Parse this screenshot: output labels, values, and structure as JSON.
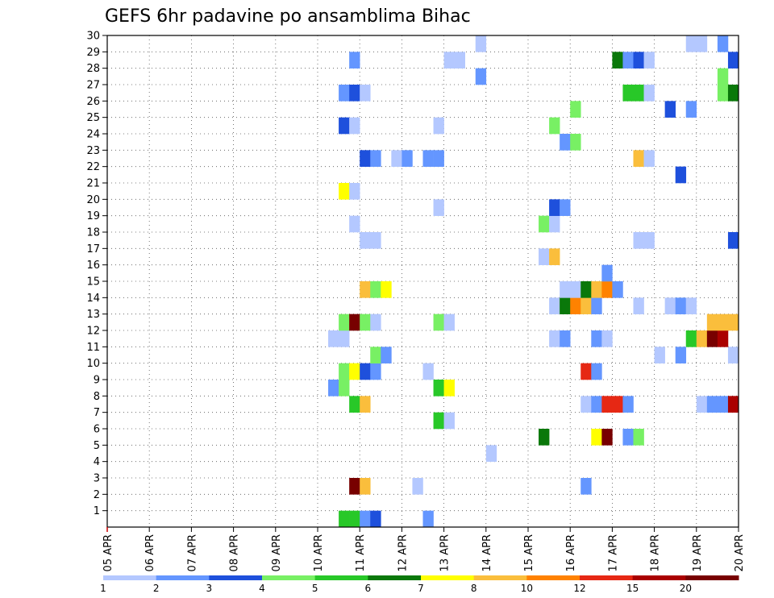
{
  "chart_data": {
    "type": "heatmap",
    "title": "GEFS 6hr padavine po ansamblima Bihac",
    "xlabel": "",
    "ylabel": "",
    "x_tick_labels": [
      "05 APR",
      "06 APR",
      "07 APR",
      "08 APR",
      "09 APR",
      "10 APR",
      "11 APR",
      "12 APR",
      "13 APR",
      "14 APR",
      "15 APR",
      "16 APR",
      "17 APR",
      "18 APR",
      "19 APR",
      "20 APR"
    ],
    "y_tick_labels": [
      "1",
      "2",
      "3",
      "4",
      "5",
      "6",
      "7",
      "8",
      "9",
      "10",
      "11",
      "12",
      "13",
      "14",
      "15",
      "16",
      "17",
      "18",
      "19",
      "20",
      "21",
      "22",
      "23",
      "24",
      "25",
      "26",
      "27",
      "28",
      "29",
      "30"
    ],
    "x_unit": "6-hour step since 05 APR 00Z",
    "xlim": [
      0,
      60
    ],
    "ylim": [
      0,
      30
    ],
    "grid": true,
    "colorbar": {
      "levels": [
        "1",
        "2",
        "3",
        "4",
        "5",
        "6",
        "7",
        "8",
        "10",
        "12",
        "15",
        "20"
      ],
      "colors": [
        "#b4c8ff",
        "#6496ff",
        "#1e50dc",
        "#78f064",
        "#28c828",
        "#0a780a",
        "#ffff00",
        "#fabe3c",
        "#ff8200",
        "#e62814",
        "#aa0000",
        "#780000"
      ]
    },
    "cells": [
      {
        "s": 22,
        "y": 0,
        "c": 5
      },
      {
        "s": 23,
        "y": 0,
        "c": 5
      },
      {
        "s": 24,
        "y": 0,
        "c": 2
      },
      {
        "s": 25,
        "y": 0,
        "c": 3
      },
      {
        "s": 30,
        "y": 0,
        "c": 2
      },
      {
        "s": 23,
        "y": 2,
        "c": 12
      },
      {
        "s": 24,
        "y": 2,
        "c": 8
      },
      {
        "s": 29,
        "y": 2,
        "c": 1
      },
      {
        "s": 45,
        "y": 2,
        "c": 2
      },
      {
        "s": 36,
        "y": 4,
        "c": 1
      },
      {
        "s": 41,
        "y": 5,
        "c": 6
      },
      {
        "s": 46,
        "y": 5,
        "c": 7
      },
      {
        "s": 47,
        "y": 5,
        "c": 12
      },
      {
        "s": 49,
        "y": 5,
        "c": 2
      },
      {
        "s": 50,
        "y": 5,
        "c": 4
      },
      {
        "s": 31,
        "y": 6,
        "c": 5
      },
      {
        "s": 32,
        "y": 6,
        "c": 1
      },
      {
        "s": 23,
        "y": 7,
        "c": 5
      },
      {
        "s": 24,
        "y": 7,
        "c": 8
      },
      {
        "s": 45,
        "y": 7,
        "c": 1
      },
      {
        "s": 46,
        "y": 7,
        "c": 2
      },
      {
        "s": 47,
        "y": 7,
        "c": 10
      },
      {
        "s": 48,
        "y": 7,
        "c": 10
      },
      {
        "s": 49,
        "y": 7,
        "c": 2
      },
      {
        "s": 56,
        "y": 7,
        "c": 1
      },
      {
        "s": 57,
        "y": 7,
        "c": 2
      },
      {
        "s": 58,
        "y": 7,
        "c": 2
      },
      {
        "s": 59,
        "y": 7,
        "c": 11
      },
      {
        "s": 21,
        "y": 8,
        "c": 2
      },
      {
        "s": 22,
        "y": 8,
        "c": 4
      },
      {
        "s": 31,
        "y": 8,
        "c": 5
      },
      {
        "s": 32,
        "y": 8,
        "c": 7
      },
      {
        "s": 22,
        "y": 9,
        "c": 4
      },
      {
        "s": 23,
        "y": 9,
        "c": 7
      },
      {
        "s": 24,
        "y": 9,
        "c": 3
      },
      {
        "s": 25,
        "y": 9,
        "c": 2
      },
      {
        "s": 30,
        "y": 9,
        "c": 1
      },
      {
        "s": 45,
        "y": 9,
        "c": 10
      },
      {
        "s": 46,
        "y": 9,
        "c": 2
      },
      {
        "s": 25,
        "y": 10,
        "c": 4
      },
      {
        "s": 26,
        "y": 10,
        "c": 2
      },
      {
        "s": 52,
        "y": 10,
        "c": 1
      },
      {
        "s": 54,
        "y": 10,
        "c": 2
      },
      {
        "s": 59,
        "y": 10,
        "c": 1
      },
      {
        "s": 21,
        "y": 11,
        "c": 1
      },
      {
        "s": 22,
        "y": 11,
        "c": 1
      },
      {
        "s": 42,
        "y": 11,
        "c": 1
      },
      {
        "s": 43,
        "y": 11,
        "c": 2
      },
      {
        "s": 46,
        "y": 11,
        "c": 2
      },
      {
        "s": 47,
        "y": 11,
        "c": 1
      },
      {
        "s": 55,
        "y": 11,
        "c": 5
      },
      {
        "s": 56,
        "y": 11,
        "c": 8
      },
      {
        "s": 57,
        "y": 11,
        "c": 12
      },
      {
        "s": 58,
        "y": 11,
        "c": 11
      },
      {
        "s": 22,
        "y": 12,
        "c": 4
      },
      {
        "s": 23,
        "y": 12,
        "c": 12
      },
      {
        "s": 24,
        "y": 12,
        "c": 4
      },
      {
        "s": 25,
        "y": 12,
        "c": 1
      },
      {
        "s": 31,
        "y": 12,
        "c": 4
      },
      {
        "s": 32,
        "y": 12,
        "c": 1
      },
      {
        "s": 57,
        "y": 12,
        "c": 8
      },
      {
        "s": 58,
        "y": 12,
        "c": 8
      },
      {
        "s": 59,
        "y": 12,
        "c": 8
      },
      {
        "s": 42,
        "y": 13,
        "c": 1
      },
      {
        "s": 43,
        "y": 13,
        "c": 6
      },
      {
        "s": 44,
        "y": 13,
        "c": 9
      },
      {
        "s": 45,
        "y": 13,
        "c": 8
      },
      {
        "s": 46,
        "y": 13,
        "c": 2
      },
      {
        "s": 50,
        "y": 13,
        "c": 1
      },
      {
        "s": 53,
        "y": 13,
        "c": 1
      },
      {
        "s": 54,
        "y": 13,
        "c": 2
      },
      {
        "s": 55,
        "y": 13,
        "c": 1
      },
      {
        "s": 24,
        "y": 14,
        "c": 8
      },
      {
        "s": 25,
        "y": 14,
        "c": 4
      },
      {
        "s": 26,
        "y": 14,
        "c": 7
      },
      {
        "s": 43,
        "y": 14,
        "c": 1
      },
      {
        "s": 44,
        "y": 14,
        "c": 1
      },
      {
        "s": 45,
        "y": 14,
        "c": 6
      },
      {
        "s": 46,
        "y": 14,
        "c": 8
      },
      {
        "s": 47,
        "y": 14,
        "c": 9
      },
      {
        "s": 48,
        "y": 14,
        "c": 2
      },
      {
        "s": 47,
        "y": 15,
        "c": 2
      },
      {
        "s": 41,
        "y": 16,
        "c": 1
      },
      {
        "s": 42,
        "y": 16,
        "c": 8
      },
      {
        "s": 24,
        "y": 17,
        "c": 1
      },
      {
        "s": 25,
        "y": 17,
        "c": 1
      },
      {
        "s": 50,
        "y": 17,
        "c": 1
      },
      {
        "s": 51,
        "y": 17,
        "c": 1
      },
      {
        "s": 59,
        "y": 17,
        "c": 3
      },
      {
        "s": 23,
        "y": 18,
        "c": 1
      },
      {
        "s": 41,
        "y": 18,
        "c": 4
      },
      {
        "s": 42,
        "y": 18,
        "c": 1
      },
      {
        "s": 31,
        "y": 19,
        "c": 1
      },
      {
        "s": 42,
        "y": 19,
        "c": 3
      },
      {
        "s": 43,
        "y": 19,
        "c": 2
      },
      {
        "s": 22,
        "y": 20,
        "c": 7
      },
      {
        "s": 23,
        "y": 20,
        "c": 1
      },
      {
        "s": 54,
        "y": 21,
        "c": 3
      },
      {
        "s": 24,
        "y": 22,
        "c": 3
      },
      {
        "s": 25,
        "y": 22,
        "c": 2
      },
      {
        "s": 27,
        "y": 22,
        "c": 1
      },
      {
        "s": 28,
        "y": 22,
        "c": 2
      },
      {
        "s": 30,
        "y": 22,
        "c": 2
      },
      {
        "s": 31,
        "y": 22,
        "c": 2
      },
      {
        "s": 50,
        "y": 22,
        "c": 8
      },
      {
        "s": 51,
        "y": 22,
        "c": 1
      },
      {
        "s": 43,
        "y": 23,
        "c": 2
      },
      {
        "s": 44,
        "y": 23,
        "c": 4
      },
      {
        "s": 22,
        "y": 24,
        "c": 3
      },
      {
        "s": 23,
        "y": 24,
        "c": 1
      },
      {
        "s": 31,
        "y": 24,
        "c": 1
      },
      {
        "s": 42,
        "y": 24,
        "c": 4
      },
      {
        "s": 44,
        "y": 25,
        "c": 4
      },
      {
        "s": 53,
        "y": 25,
        "c": 3
      },
      {
        "s": 55,
        "y": 25,
        "c": 2
      },
      {
        "s": 22,
        "y": 26,
        "c": 2
      },
      {
        "s": 23,
        "y": 26,
        "c": 3
      },
      {
        "s": 24,
        "y": 26,
        "c": 1
      },
      {
        "s": 49,
        "y": 26,
        "c": 5
      },
      {
        "s": 50,
        "y": 26,
        "c": 5
      },
      {
        "s": 51,
        "y": 26,
        "c": 1
      },
      {
        "s": 58,
        "y": 26,
        "c": 4
      },
      {
        "s": 59,
        "y": 26,
        "c": 6
      },
      {
        "s": 35,
        "y": 27,
        "c": 2
      },
      {
        "s": 58,
        "y": 27,
        "c": 4
      },
      {
        "s": 23,
        "y": 28,
        "c": 2
      },
      {
        "s": 32,
        "y": 28,
        "c": 1
      },
      {
        "s": 33,
        "y": 28,
        "c": 1
      },
      {
        "s": 48,
        "y": 28,
        "c": 6
      },
      {
        "s": 49,
        "y": 28,
        "c": 2
      },
      {
        "s": 50,
        "y": 28,
        "c": 3
      },
      {
        "s": 51,
        "y": 28,
        "c": 1
      },
      {
        "s": 59,
        "y": 28,
        "c": 3
      },
      {
        "s": 35,
        "y": 29,
        "c": 1
      },
      {
        "s": 55,
        "y": 29,
        "c": 1
      },
      {
        "s": 56,
        "y": 29,
        "c": 1
      },
      {
        "s": 58,
        "y": 29,
        "c": 2
      }
    ]
  }
}
